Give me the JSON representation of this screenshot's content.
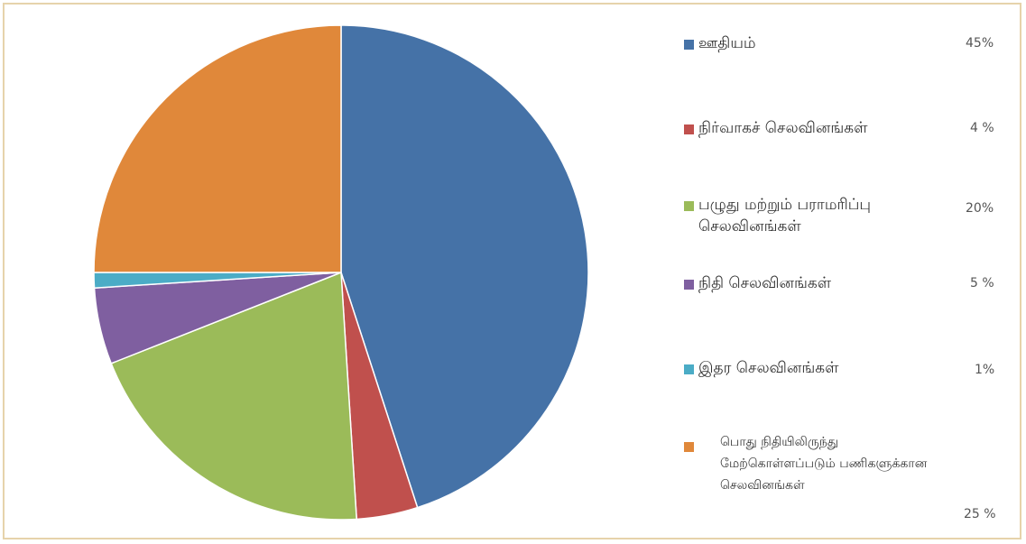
{
  "chart_data": {
    "type": "pie",
    "title": "",
    "slices": [
      {
        "label": "ஊதியம்",
        "value": 45,
        "value_label": "45%",
        "color": "#4572a7"
      },
      {
        "label": "நிர்வாகச் செலவினங்கள்",
        "value": 4,
        "value_label": "4 %",
        "color": "#c0504d"
      },
      {
        "label": "பழுது மற்றும் பராமரிப்பு\nசெலவினங்கள்",
        "value": 20,
        "value_label": "20%",
        "color": "#9bbb59"
      },
      {
        "label": "நிதி செலவினங்கள்",
        "value": 5,
        "value_label": "5 %",
        "color": "#7f5fa0"
      },
      {
        "label": "இதர செலவினங்கள்",
        "value": 1,
        "value_label": "1%",
        "color": "#4bacc6"
      },
      {
        "label": "பொது நிதியிலிருந்து\nமேற்கொள்ளப்படும் பணிகளுக்கான\nசெலவினங்கள்",
        "value": 25,
        "value_label": "25 %",
        "color": "#e0883a"
      }
    ],
    "legend_position": "right"
  }
}
